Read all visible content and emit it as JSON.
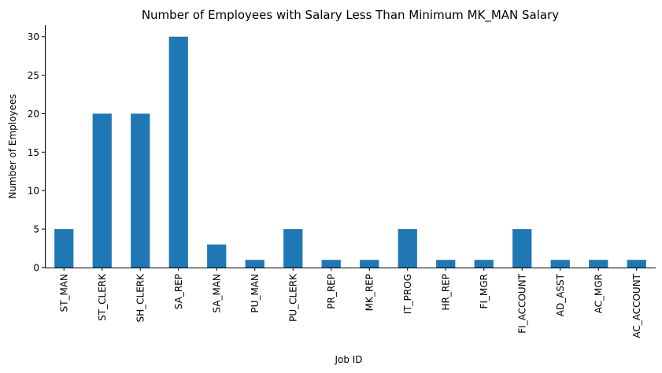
{
  "chart_data": {
    "type": "bar",
    "title": "Number of Employees with Salary Less Than Minimum MK_MAN Salary",
    "xlabel": "Job ID",
    "ylabel": "Number of Employees",
    "categories": [
      "ST_MAN",
      "ST_CLERK",
      "SH_CLERK",
      "SA_REP",
      "SA_MAN",
      "PU_MAN",
      "PU_CLERK",
      "PR_REP",
      "MK_REP",
      "IT_PROG",
      "HR_REP",
      "FI_MGR",
      "FI_ACCOUNT",
      "AD_ASST",
      "AC_MGR",
      "AC_ACCOUNT"
    ],
    "values": [
      5,
      20,
      20,
      30,
      3,
      1,
      5,
      1,
      1,
      5,
      1,
      1,
      5,
      1,
      1,
      1
    ],
    "yticks": [
      0,
      5,
      10,
      15,
      20,
      25,
      30
    ],
    "ylim": [
      0,
      31.5
    ],
    "grid": false,
    "legend": "none",
    "bar_color": "#1f77b4"
  }
}
